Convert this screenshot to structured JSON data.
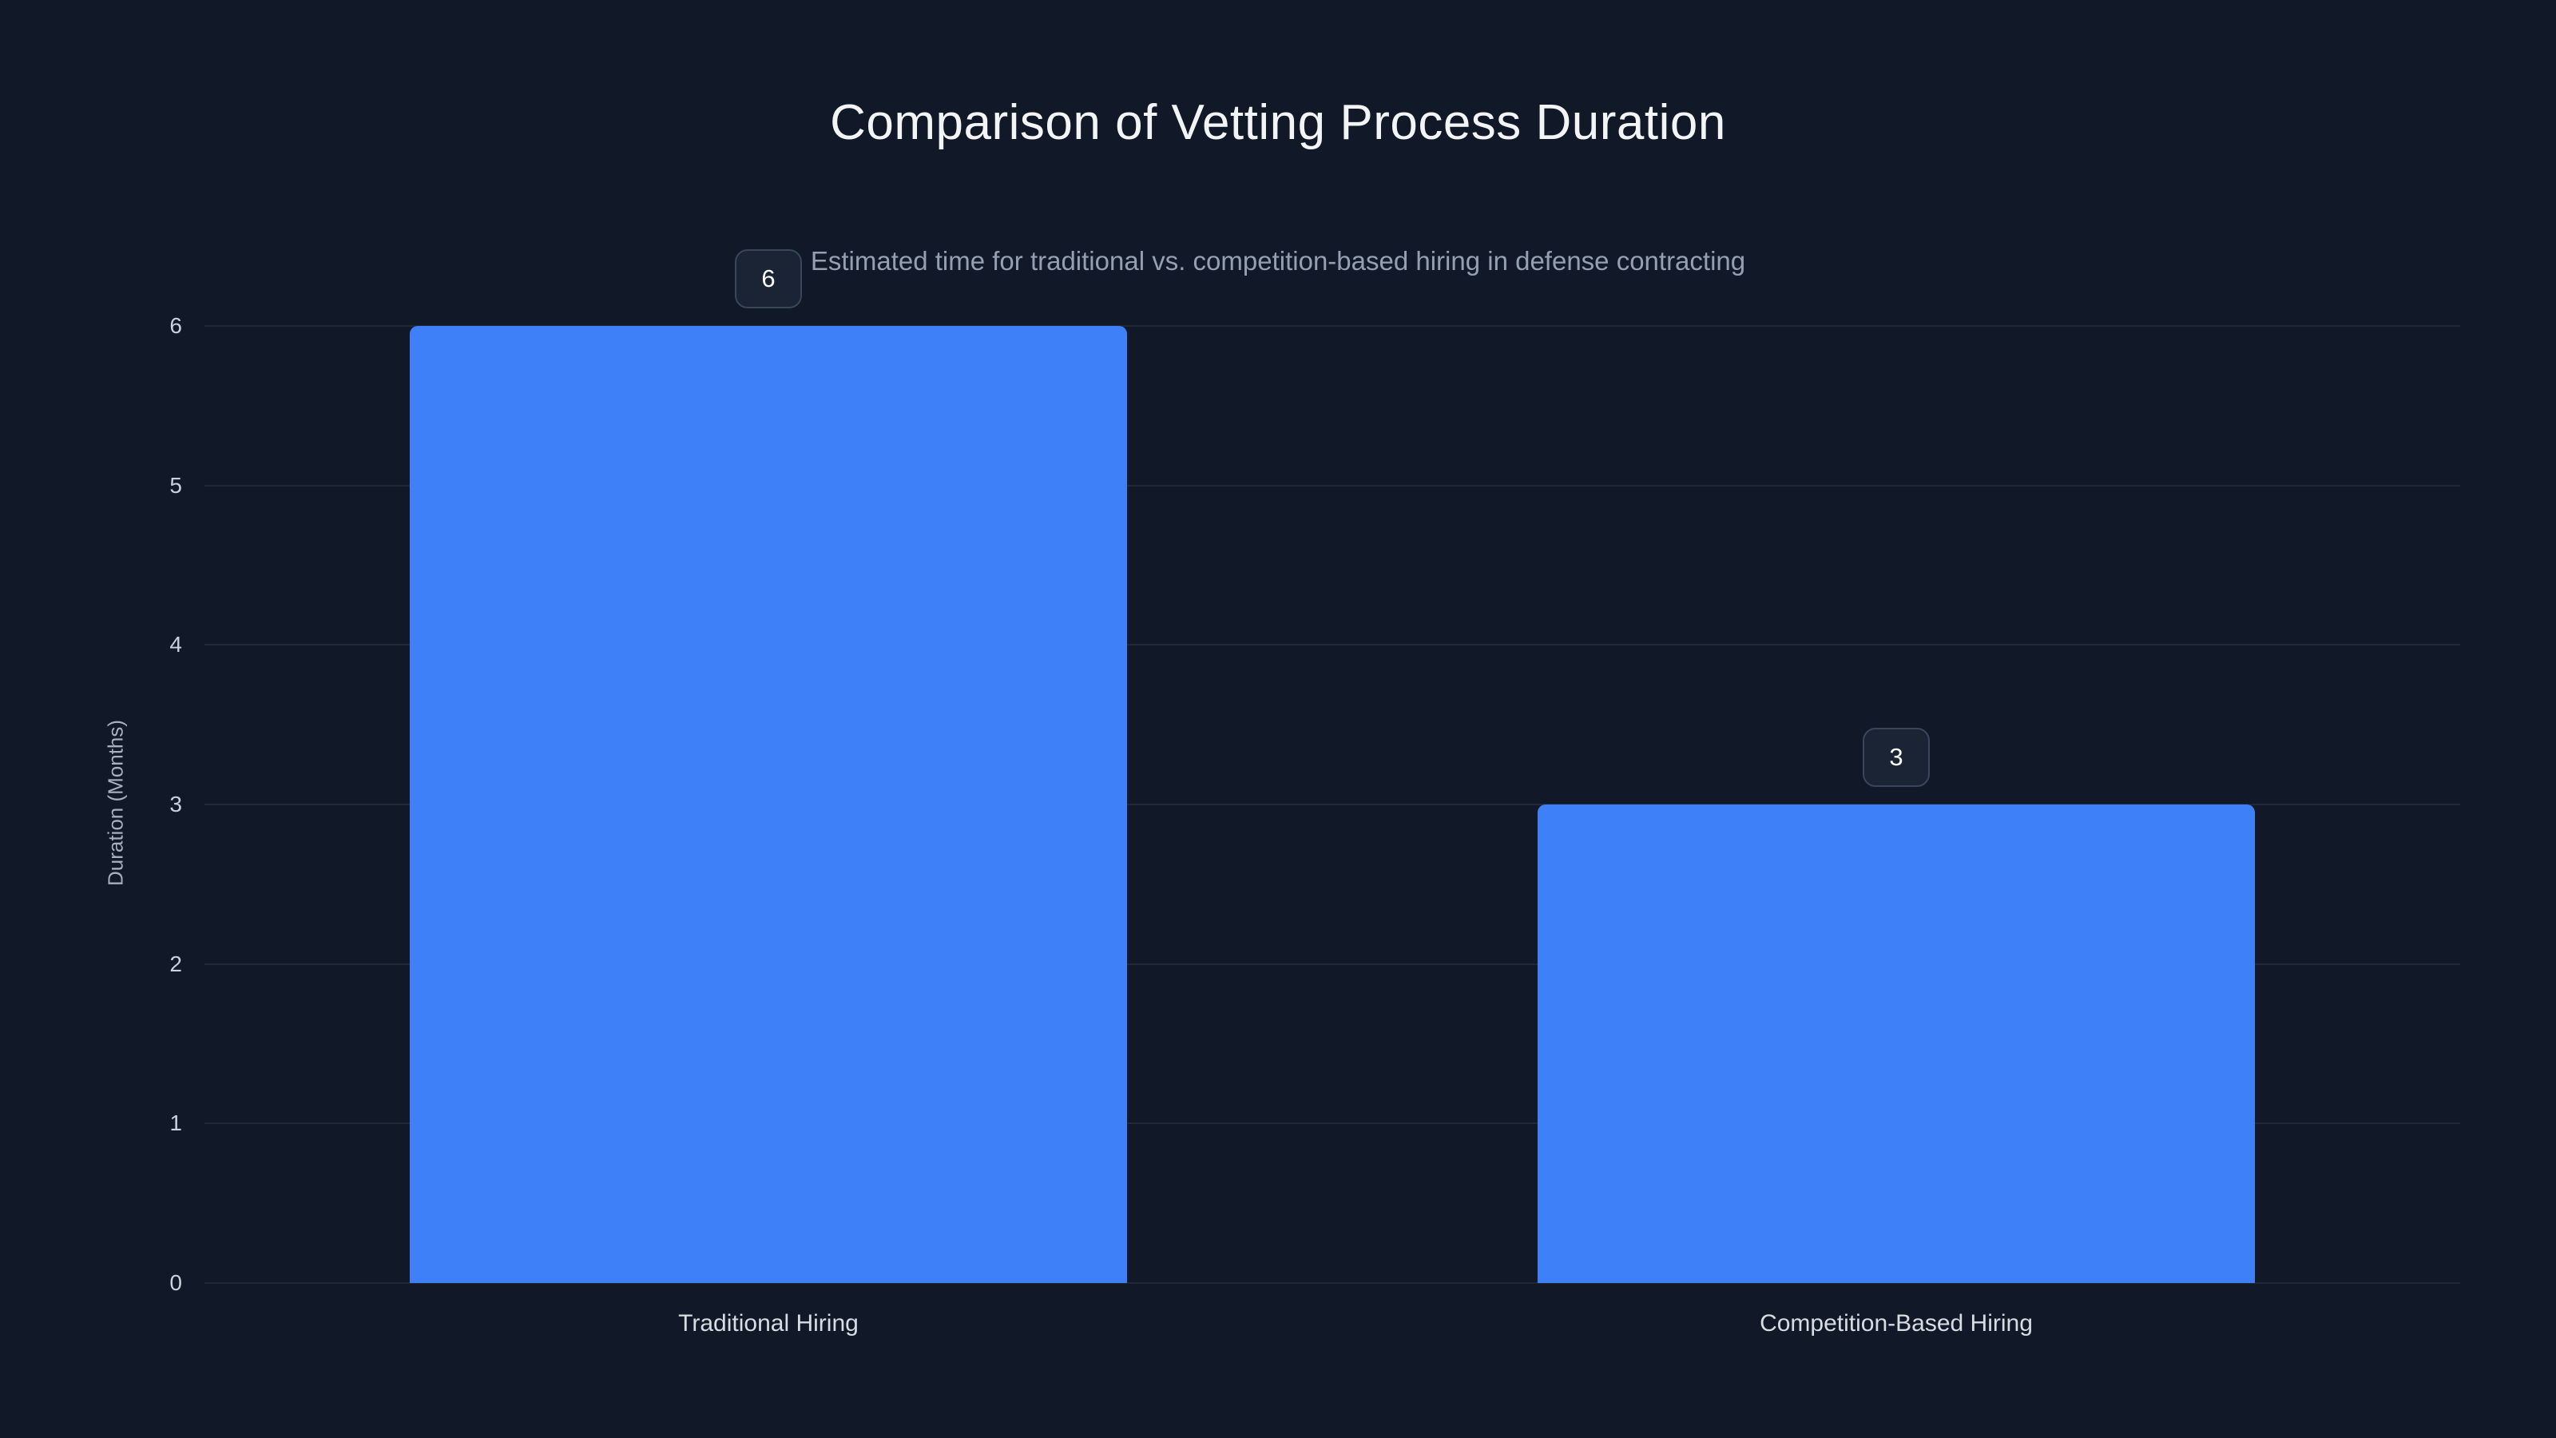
{
  "header": {
    "title": "Comparison of Vetting Process Duration",
    "subtitle": "Estimated time for traditional vs. competition-based hiring in defense contracting"
  },
  "chart_data": {
    "type": "bar",
    "title": "Comparison of Vetting Process Duration",
    "subtitle": "Estimated time for traditional vs. competition-based hiring in defense contracting",
    "categories": [
      "Traditional Hiring",
      "Competition-Based Hiring"
    ],
    "values": [
      6,
      3
    ],
    "value_labels": [
      "6",
      "3"
    ],
    "xlabel": "",
    "ylabel": "Duration (Months)",
    "ylim": [
      0,
      6
    ],
    "yticks": [
      0,
      1,
      2,
      3,
      4,
      5,
      6
    ],
    "grid": true,
    "legend": "none",
    "colors": {
      "background": "#111827",
      "bar": "#3e80f7",
      "title_text": "#f3f4f6",
      "subtitle_text": "#94a0b1",
      "tick_text": "#c9d1dc",
      "gridline": "rgba(255,255,255,0.07)"
    }
  }
}
